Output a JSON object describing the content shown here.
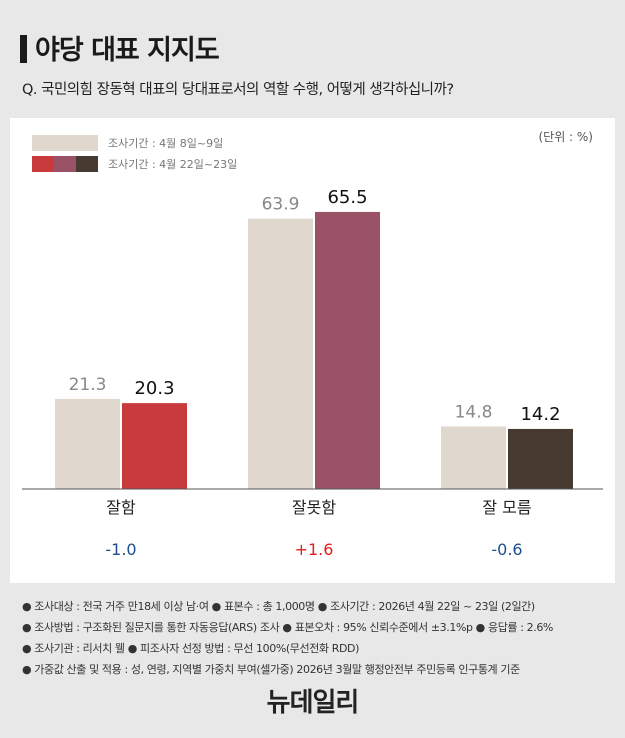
{
  "title": "야당 대표 지지도",
  "question": "Q. 국민의힘 장동혁 대표의 당대표로서의 역할 수행, 어떻게 생각하십니까?",
  "unit": "(단위 : %)",
  "legend": [
    {
      "label": "조사기간 : 4월 8일~9일",
      "colors": [
        "#e0d7ce"
      ]
    },
    {
      "label": "조사기간 : 4월 22일~23일",
      "colors": [
        "#c93a3d",
        "#9a5366",
        "#463a31"
      ]
    }
  ],
  "chart_data": {
    "type": "bar",
    "categories": [
      "잘함",
      "잘못함",
      "잘 모름"
    ],
    "series": [
      {
        "name": "조사기간 : 4월 8일~9일",
        "values": [
          21.3,
          63.9,
          14.8
        ],
        "color": "#e0d7ce"
      },
      {
        "name": "조사기간 : 4월 22일~23일",
        "values": [
          20.3,
          65.5,
          14.2
        ],
        "colors": [
          "#c93a3d",
          "#9a5366",
          "#463a31"
        ]
      }
    ],
    "value_labels": [
      [
        "21.3",
        "63.9",
        "14.8"
      ],
      [
        "20.3",
        "65.5",
        "14.2"
      ]
    ],
    "changes": [
      {
        "text": "-1.0",
        "color": "#1f4f8f"
      },
      {
        "text": "+1.6",
        "color": "#e0201c"
      },
      {
        "text": "-0.6",
        "color": "#1f4f8f"
      }
    ],
    "ylim": [
      0,
      70
    ]
  },
  "footer": [
    "● 조사대상 : 전국 거주 만18세 이상 남·여 ● 표본수 : 총 1,000명 ● 조사기간 : 2026년 4월 22일 ~ 23일 (2일간)",
    "● 조사방법 : 구조화된 질문지를 통한 자동응답(ARS) 조사 ● 표본오차 : 95% 신뢰수준에서 ±3.1%p ● 응답률 : 2.6%",
    "● 조사기관 : 리서치 웰 ● 피조사자 선정 방법 : 무선 100%(무선전화 RDD)",
    "● 가중값 산출 및 적용 : 성, 연령, 지역별 가중치 부여(셀가중) 2026년 3월말 행정안전부 주민등록 인구통계 기준"
  ],
  "logo": "뉴데일리"
}
